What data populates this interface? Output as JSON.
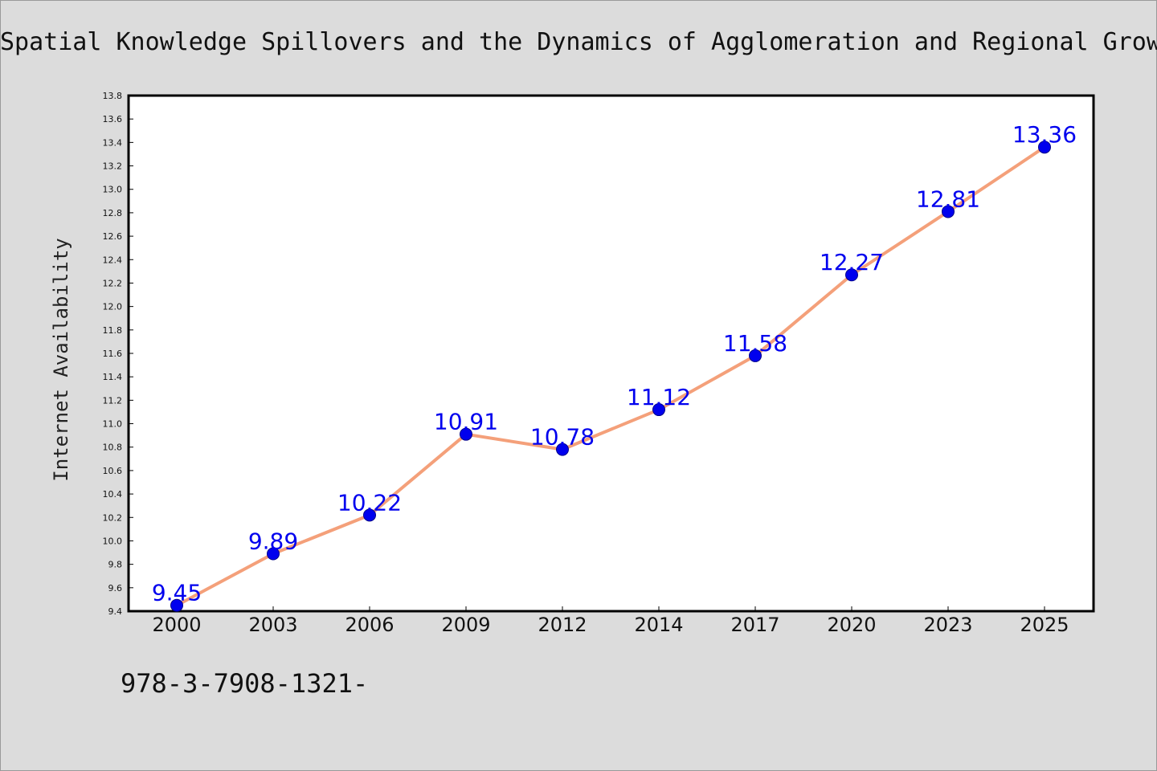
{
  "title": "Spatial Knowledge Spillovers and the Dynamics of Agglomeration and Regional Growth",
  "footer_text": "978-3-7908-1321-",
  "colors": {
    "background": "#dcdcdc",
    "plot_background": "#ffffff",
    "line": "#f4a07a",
    "marker": "#0000ee",
    "data_label": "#0000ee"
  },
  "chart_data": {
    "type": "line",
    "title": "Spatial Knowledge Spillovers and the Dynamics of Agglomeration and Regional Growth",
    "xlabel": "",
    "ylabel": "Internet Availability",
    "categories": [
      "2000",
      "2003",
      "2006",
      "2009",
      "2012",
      "2014",
      "2017",
      "2020",
      "2023",
      "2025"
    ],
    "series": [
      {
        "values": [
          9.45,
          9.89,
          10.22,
          10.91,
          10.78,
          11.12,
          11.58,
          12.27,
          12.81,
          13.36
        ],
        "labels": [
          "9.45",
          "9.89",
          "10.22",
          "10.91",
          "10.78",
          "11.12",
          "11.58",
          "12.27",
          "12.81",
          "13.36"
        ]
      }
    ],
    "ylim": [
      9.4,
      13.8
    ],
    "yticks": [
      "9.4",
      "9.6",
      "9.8",
      "10.0",
      "10.2",
      "10.4",
      "10.6",
      "10.8",
      "11.0",
      "11.2",
      "11.4",
      "11.6",
      "11.8",
      "12.0",
      "12.2",
      "12.4",
      "12.6",
      "12.8",
      "13.0",
      "13.2",
      "13.4",
      "13.6",
      "13.8"
    ],
    "grid": false,
    "legend": "none"
  }
}
